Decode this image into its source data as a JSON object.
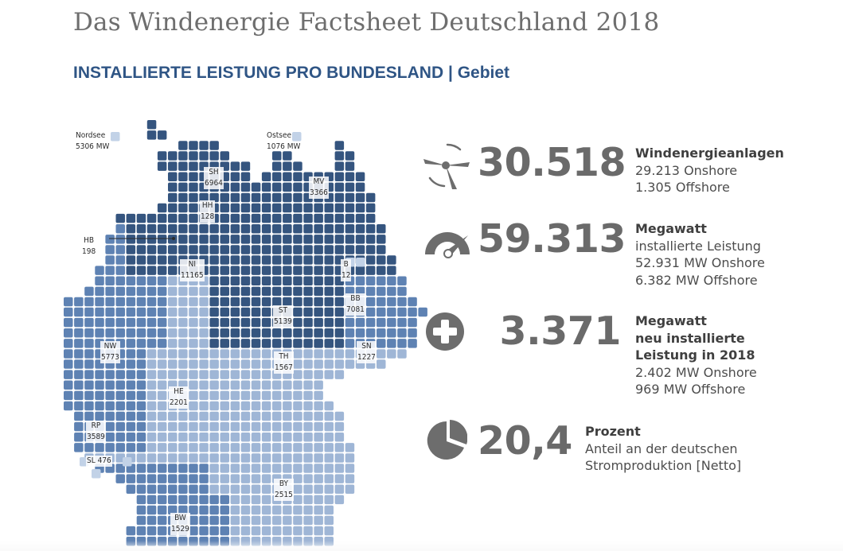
{
  "header": {
    "title": "Das Windenergie Factsheet Deutschland 2018",
    "subtitle_main": "INSTALLIERTE LEISTUNG PRO BUNDESLAND",
    "subtitle_sep": "|",
    "subtitle_tail": "Gebiet"
  },
  "colors": {
    "north_dark": "#35557f",
    "mid_blue": "#5e82b3",
    "light_blue": "#9fb6d6",
    "pale_blue": "#c2d2e7",
    "stat_gray": "#6a6a6a"
  },
  "map": {
    "seas": [
      {
        "id": "nordsee",
        "name": "Nordsee",
        "value": "5306 MW"
      },
      {
        "id": "ostsee",
        "name": "Ostsee",
        "value": "1076 MW"
      }
    ],
    "states": [
      {
        "code": "SH",
        "value": "6964"
      },
      {
        "code": "MV",
        "value": "3366"
      },
      {
        "code": "HH",
        "value": "128"
      },
      {
        "code": "HB",
        "value": "198"
      },
      {
        "code": "NI",
        "value": "11165"
      },
      {
        "code": "B",
        "value": "12"
      },
      {
        "code": "BB",
        "value": "7081"
      },
      {
        "code": "ST",
        "value": "5139"
      },
      {
        "code": "NW",
        "value": "5773"
      },
      {
        "code": "TH",
        "value": "1567"
      },
      {
        "code": "SN",
        "value": "1227"
      },
      {
        "code": "HE",
        "value": "2201"
      },
      {
        "code": "RP",
        "value": "3589"
      },
      {
        "code": "SL",
        "value": "476"
      },
      {
        "code": "BY",
        "value": "2515"
      },
      {
        "code": "BW",
        "value": "1529"
      }
    ]
  },
  "stats": [
    {
      "icon": "wind-turbine-icon",
      "number": "30.518",
      "lines": [
        "Windenergieanlagen",
        "29.213 Onshore",
        "1.305 Offshore"
      ]
    },
    {
      "icon": "speedometer-icon",
      "number": "59.313",
      "lines": [
        "Megawatt",
        "installierte Leistung",
        "52.931 MW Onshore",
        "6.382 MW Offshore"
      ]
    },
    {
      "icon": "plus-circle-icon",
      "number": "3.371",
      "lines": [
        "Megawatt",
        "neu installierte",
        "Leistung in 2018",
        "2.402 MW Onshore",
        "969 MW Offshore"
      ]
    },
    {
      "icon": "pie-chart-icon",
      "number": "20,4",
      "lines": [
        "Prozent",
        "Anteil an der deutschen",
        "Stromproduktion [Netto]"
      ]
    }
  ]
}
